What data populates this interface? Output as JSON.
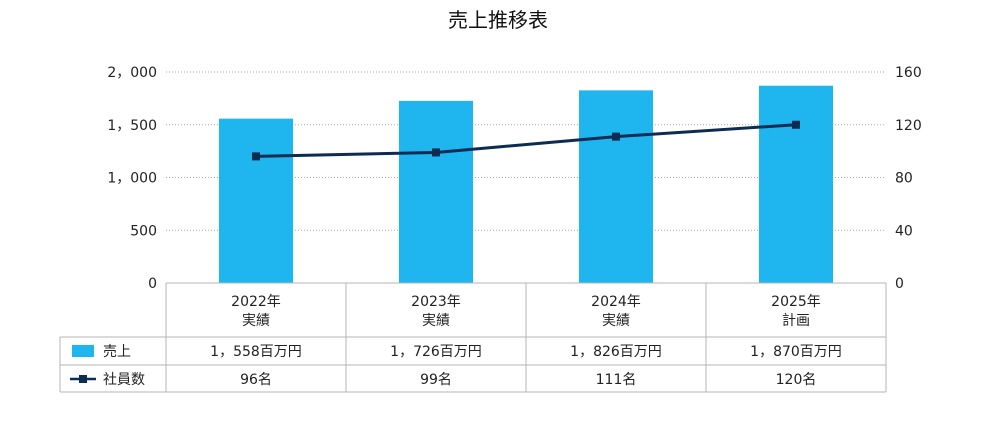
{
  "chart_data": {
    "type": "bar",
    "title": "売上推移表",
    "categories": [
      {
        "year": "2022年",
        "status": "実績"
      },
      {
        "year": "2023年",
        "status": "実績"
      },
      {
        "year": "2024年",
        "status": "実績"
      },
      {
        "year": "2025年",
        "status": "計画"
      }
    ],
    "series": [
      {
        "name": "売上",
        "kind": "bar",
        "axis": "left",
        "color": "#1fb5ef",
        "values": [
          1558,
          1726,
          1826,
          1870
        ],
        "labels": [
          "1，558百万円",
          "1，726百万円",
          "1，826百万円",
          "1，870百万円"
        ]
      },
      {
        "name": "社員数",
        "kind": "line",
        "axis": "right",
        "color": "#0d2c52",
        "values": [
          96,
          99,
          111,
          120
        ],
        "labels": [
          "96名",
          "99名",
          "111名",
          "120名"
        ]
      }
    ],
    "left_axis": {
      "ylim": [
        0,
        2000
      ],
      "ticks": [
        0,
        500,
        1000,
        1500,
        2000
      ],
      "tick_labels": [
        "0",
        "500",
        "1，000",
        "1，500",
        "2，000"
      ]
    },
    "right_axis": {
      "ylim": [
        0,
        160
      ],
      "ticks": [
        0,
        40,
        80,
        120,
        160
      ],
      "tick_labels": [
        "0",
        "40",
        "80",
        "120",
        "160"
      ]
    },
    "grid": "horizontal-dotted",
    "legend": "data-table-left"
  }
}
